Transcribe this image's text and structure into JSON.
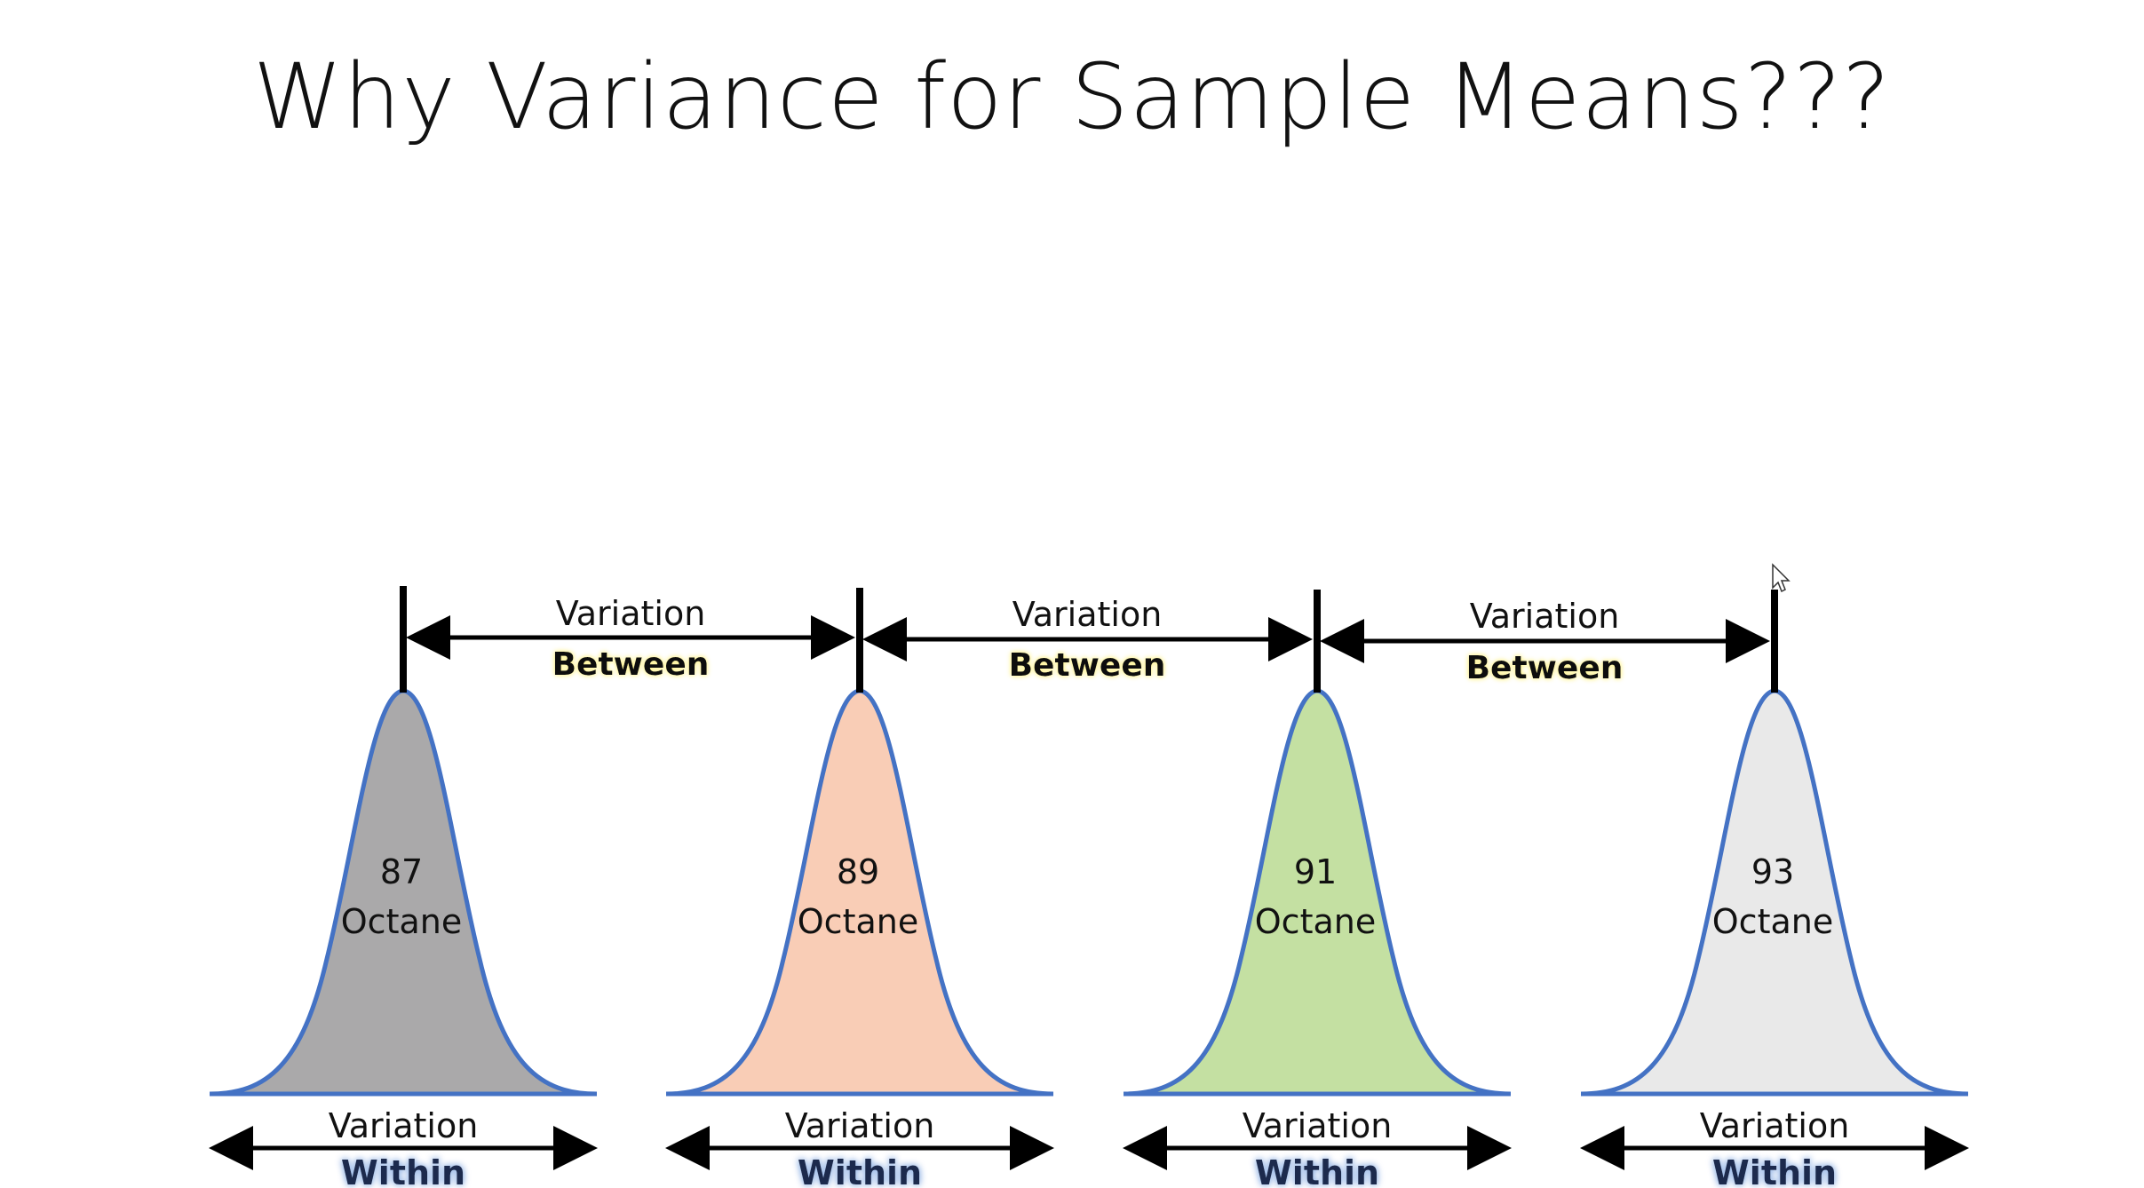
{
  "title": "Why Variance for Sample Means???",
  "curves": [
    {
      "value": "87",
      "unit": "Octane",
      "fill": "#aaa9aa"
    },
    {
      "value": "89",
      "unit": "Octane",
      "fill": "#f9cdb6"
    },
    {
      "value": "91",
      "unit": "Octane",
      "fill": "#c4e0a2"
    },
    {
      "value": "93",
      "unit": "Octane",
      "fill": "#e9e9e9"
    }
  ],
  "between": [
    {
      "line1": "Variation",
      "line2": "Between"
    },
    {
      "line1": "Variation",
      "line2": "Between"
    },
    {
      "line1": "Variation",
      "line2": "Between"
    }
  ],
  "within": [
    {
      "line1": "Variation",
      "line2": "Within"
    },
    {
      "line1": "Variation",
      "line2": "Within"
    },
    {
      "line1": "Variation",
      "line2": "Within"
    },
    {
      "line1": "Variation",
      "line2": "Within"
    }
  ],
  "colors": {
    "curve_stroke": "#4472c4",
    "between_highlight": "#fffbc4",
    "within_glow": "#aec6ec"
  },
  "cursor": "arrow-cursor-icon"
}
